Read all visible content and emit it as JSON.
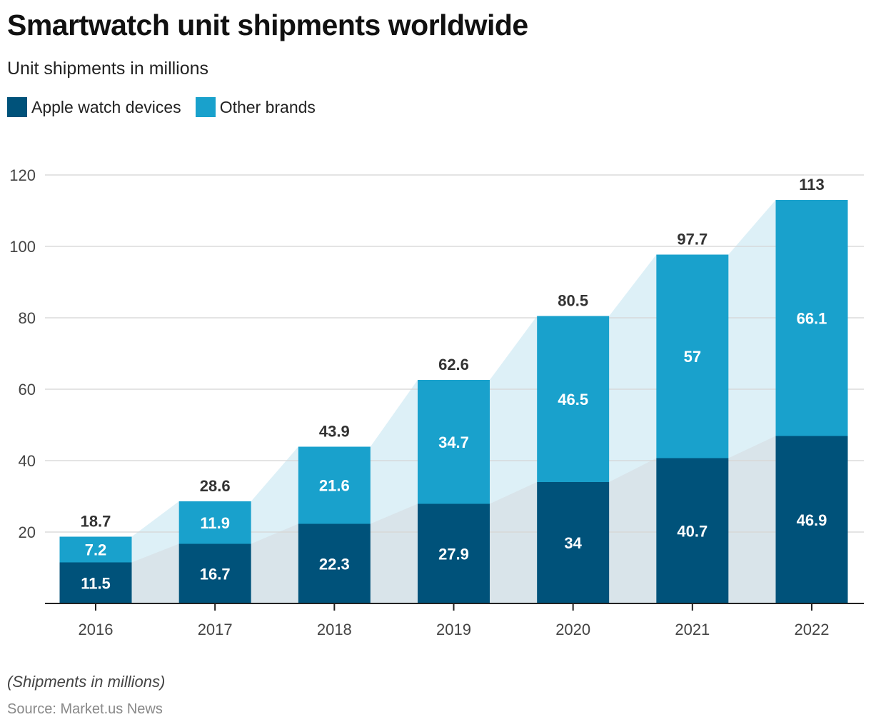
{
  "title": "Smartwatch unit shipments worldwide",
  "subtitle": "Unit shipments in millions",
  "note": "(Shipments in millions)",
  "source": "Source: Market.us News",
  "colors": {
    "apple": "#00527a",
    "other": "#19a1cc",
    "apple_area": "#d9e4ea",
    "other_area": "#ddf0f7",
    "grid": "#d6d6d6",
    "axis": "#222222"
  },
  "legend": [
    {
      "label": "Apple watch devices",
      "color": "#00527a"
    },
    {
      "label": "Other brands",
      "color": "#19a1cc"
    }
  ],
  "chart_data": {
    "type": "bar",
    "stacked": true,
    "title": "Smartwatch unit shipments worldwide",
    "subtitle": "Unit shipments in millions",
    "xlabel": "",
    "ylabel": "",
    "categories": [
      "2016",
      "2017",
      "2018",
      "2019",
      "2020",
      "2021",
      "2022"
    ],
    "series": [
      {
        "name": "Apple watch devices",
        "values": [
          11.5,
          16.7,
          22.3,
          27.9,
          34,
          40.7,
          46.9
        ]
      },
      {
        "name": "Other brands",
        "values": [
          7.2,
          11.9,
          21.6,
          34.7,
          46.5,
          57,
          66.1
        ]
      }
    ],
    "totals": [
      18.7,
      28.6,
      43.9,
      62.6,
      80.5,
      97.7,
      113
    ],
    "segment_labels": {
      "apple": [
        "11.5",
        "16.7",
        "22.3",
        "27.9",
        "34",
        "40.7",
        "46.9"
      ],
      "other": [
        "7.2",
        "11.9",
        "21.6",
        "34.7",
        "46.5",
        "57",
        "66.1"
      ],
      "totals": [
        "18.7",
        "28.6",
        "43.9",
        "62.6",
        "80.5",
        "97.7",
        "113"
      ]
    },
    "ylim": [
      0,
      120
    ],
    "yticks": [
      20,
      40,
      60,
      80,
      100,
      120
    ],
    "ytick_labels": [
      "20",
      "40",
      "60",
      "80",
      "100",
      "120"
    ],
    "grid": true,
    "legend_position": "top-left"
  }
}
